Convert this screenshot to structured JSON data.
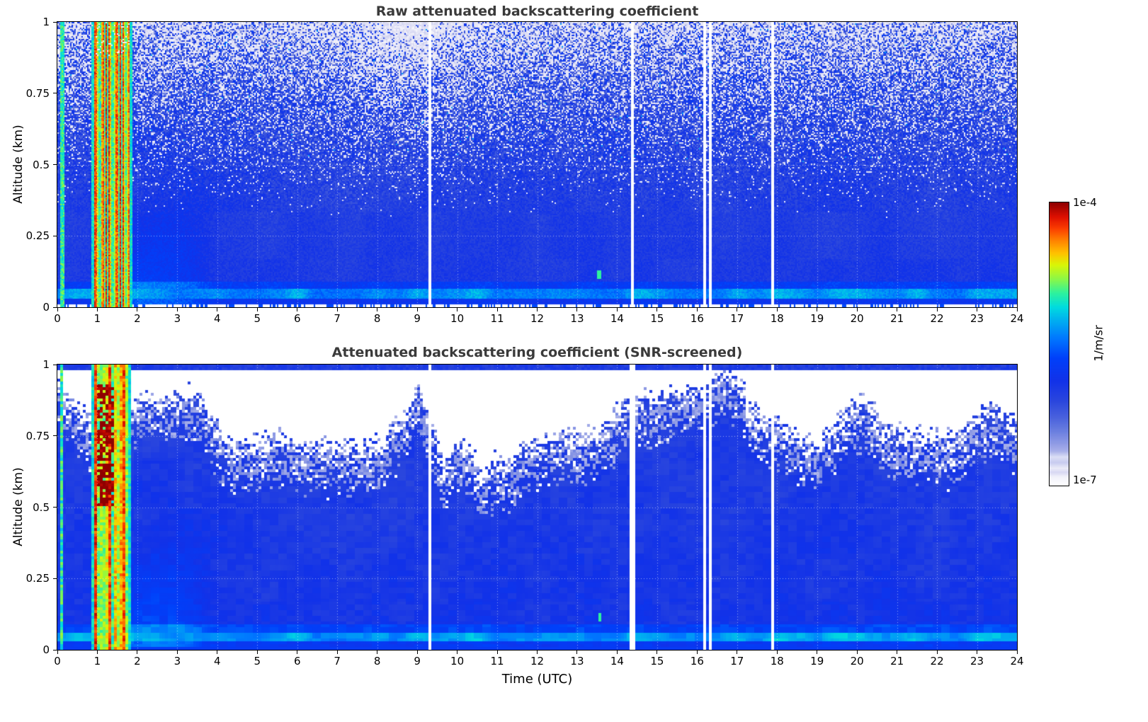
{
  "figure": {
    "background": "#ffffff",
    "title_color": "#3a3a3a"
  },
  "chart_data": {
    "type": "heatmap",
    "panels": [
      {
        "title": "Raw attenuated backscattering coefficient",
        "screened": false
      },
      {
        "title": "Attenuated backscattering coefficient (SNR-screened)",
        "screened": true
      }
    ],
    "x": {
      "label": "Time (UTC)",
      "min": 0,
      "max": 24,
      "tick_labels": [
        "0",
        "1",
        "2",
        "3",
        "4",
        "5",
        "6",
        "7",
        "8",
        "9",
        "10",
        "11",
        "12",
        "13",
        "14",
        "15",
        "16",
        "17",
        "18",
        "19",
        "20",
        "21",
        "22",
        "23",
        "24"
      ]
    },
    "y": {
      "label": "Altitude (km)",
      "min": 0,
      "max": 1,
      "tick_labels": [
        "0",
        "0.25",
        "0.5",
        "0.75",
        "1"
      ],
      "tick_values": [
        0,
        0.25,
        0.5,
        0.75,
        1
      ]
    },
    "colorbar": {
      "unit": "1/m/sr",
      "max_label": "1e-4",
      "min_label": "1e-7",
      "min_value": 1e-07,
      "max_value": 0.0001,
      "scale": "log",
      "stops": [
        {
          "f": 0.0,
          "c": "#ffffff"
        },
        {
          "f": 0.03,
          "c": "#f2f2fb"
        },
        {
          "f": 0.045,
          "c": "#d8d8f3"
        },
        {
          "f": 0.06,
          "c": "#ececf9"
        },
        {
          "f": 0.08,
          "c": "#c8ccf0"
        },
        {
          "f": 0.1,
          "c": "#dde0f6"
        },
        {
          "f": 0.12,
          "c": "#aab2ea"
        },
        {
          "f": 0.15,
          "c": "#8e9ae5"
        },
        {
          "f": 0.19,
          "c": "#6c80e0"
        },
        {
          "f": 0.24,
          "c": "#4a62dd"
        },
        {
          "f": 0.3,
          "c": "#2a46de"
        },
        {
          "f": 0.37,
          "c": "#1232e9"
        },
        {
          "f": 0.45,
          "c": "#0140fa"
        },
        {
          "f": 0.52,
          "c": "#0078ff"
        },
        {
          "f": 0.58,
          "c": "#00acf2"
        },
        {
          "f": 0.63,
          "c": "#00dce0"
        },
        {
          "f": 0.68,
          "c": "#2ef29e"
        },
        {
          "f": 0.73,
          "c": "#8cf847"
        },
        {
          "f": 0.78,
          "c": "#daf607"
        },
        {
          "f": 0.82,
          "c": "#ffc400"
        },
        {
          "f": 0.87,
          "c": "#ff7d00"
        },
        {
          "f": 0.91,
          "c": "#fb3c00"
        },
        {
          "f": 0.95,
          "c": "#dd1000"
        },
        {
          "f": 1.0,
          "c": "#8f0000"
        }
      ]
    },
    "features": {
      "background_backscatter": 1e-06,
      "plume": {
        "t_start": 0.84,
        "t_end": 1.86,
        "z_min": 0,
        "z_max": 1,
        "peak_value": 0.0001,
        "edge_value": 1e-05
      },
      "early_streak_t": 0.12,
      "surface_layer": {
        "z_min": 0.028,
        "z_max": 0.062,
        "value": 4e-06
      },
      "data_gap_times": [
        9.32,
        14.37,
        16.18,
        16.32,
        17.88
      ],
      "green_speck": {
        "t": 13.55,
        "z": 0.115
      },
      "raw_noise_speckle_above_km": 0.35,
      "snr_screen_boundary_km": {
        "typical": 0.8,
        "min": 0.5,
        "max": 1.0
      },
      "mid_day_screen_dip": {
        "t_center": 9.8,
        "t_width": 2.2
      }
    }
  }
}
